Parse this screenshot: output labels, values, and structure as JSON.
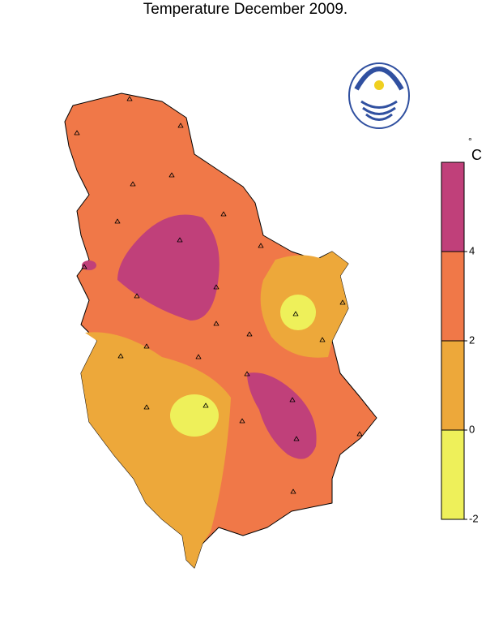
{
  "title": "Temperature December 2009.",
  "colorbar": {
    "unit_degree": "°",
    "unit": "C",
    "lim": [
      -2,
      6
    ],
    "ticks": [
      -2,
      0,
      2,
      4
    ],
    "bands": [
      {
        "from": -2,
        "to": 0,
        "color": "#eef05a"
      },
      {
        "from": 0,
        "to": 2,
        "color": "#eda83a"
      },
      {
        "from": 2,
        "to": 4,
        "color": "#f07848"
      },
      {
        "from": 4,
        "to": 6,
        "color": "#c0407a"
      }
    ]
  }
}
